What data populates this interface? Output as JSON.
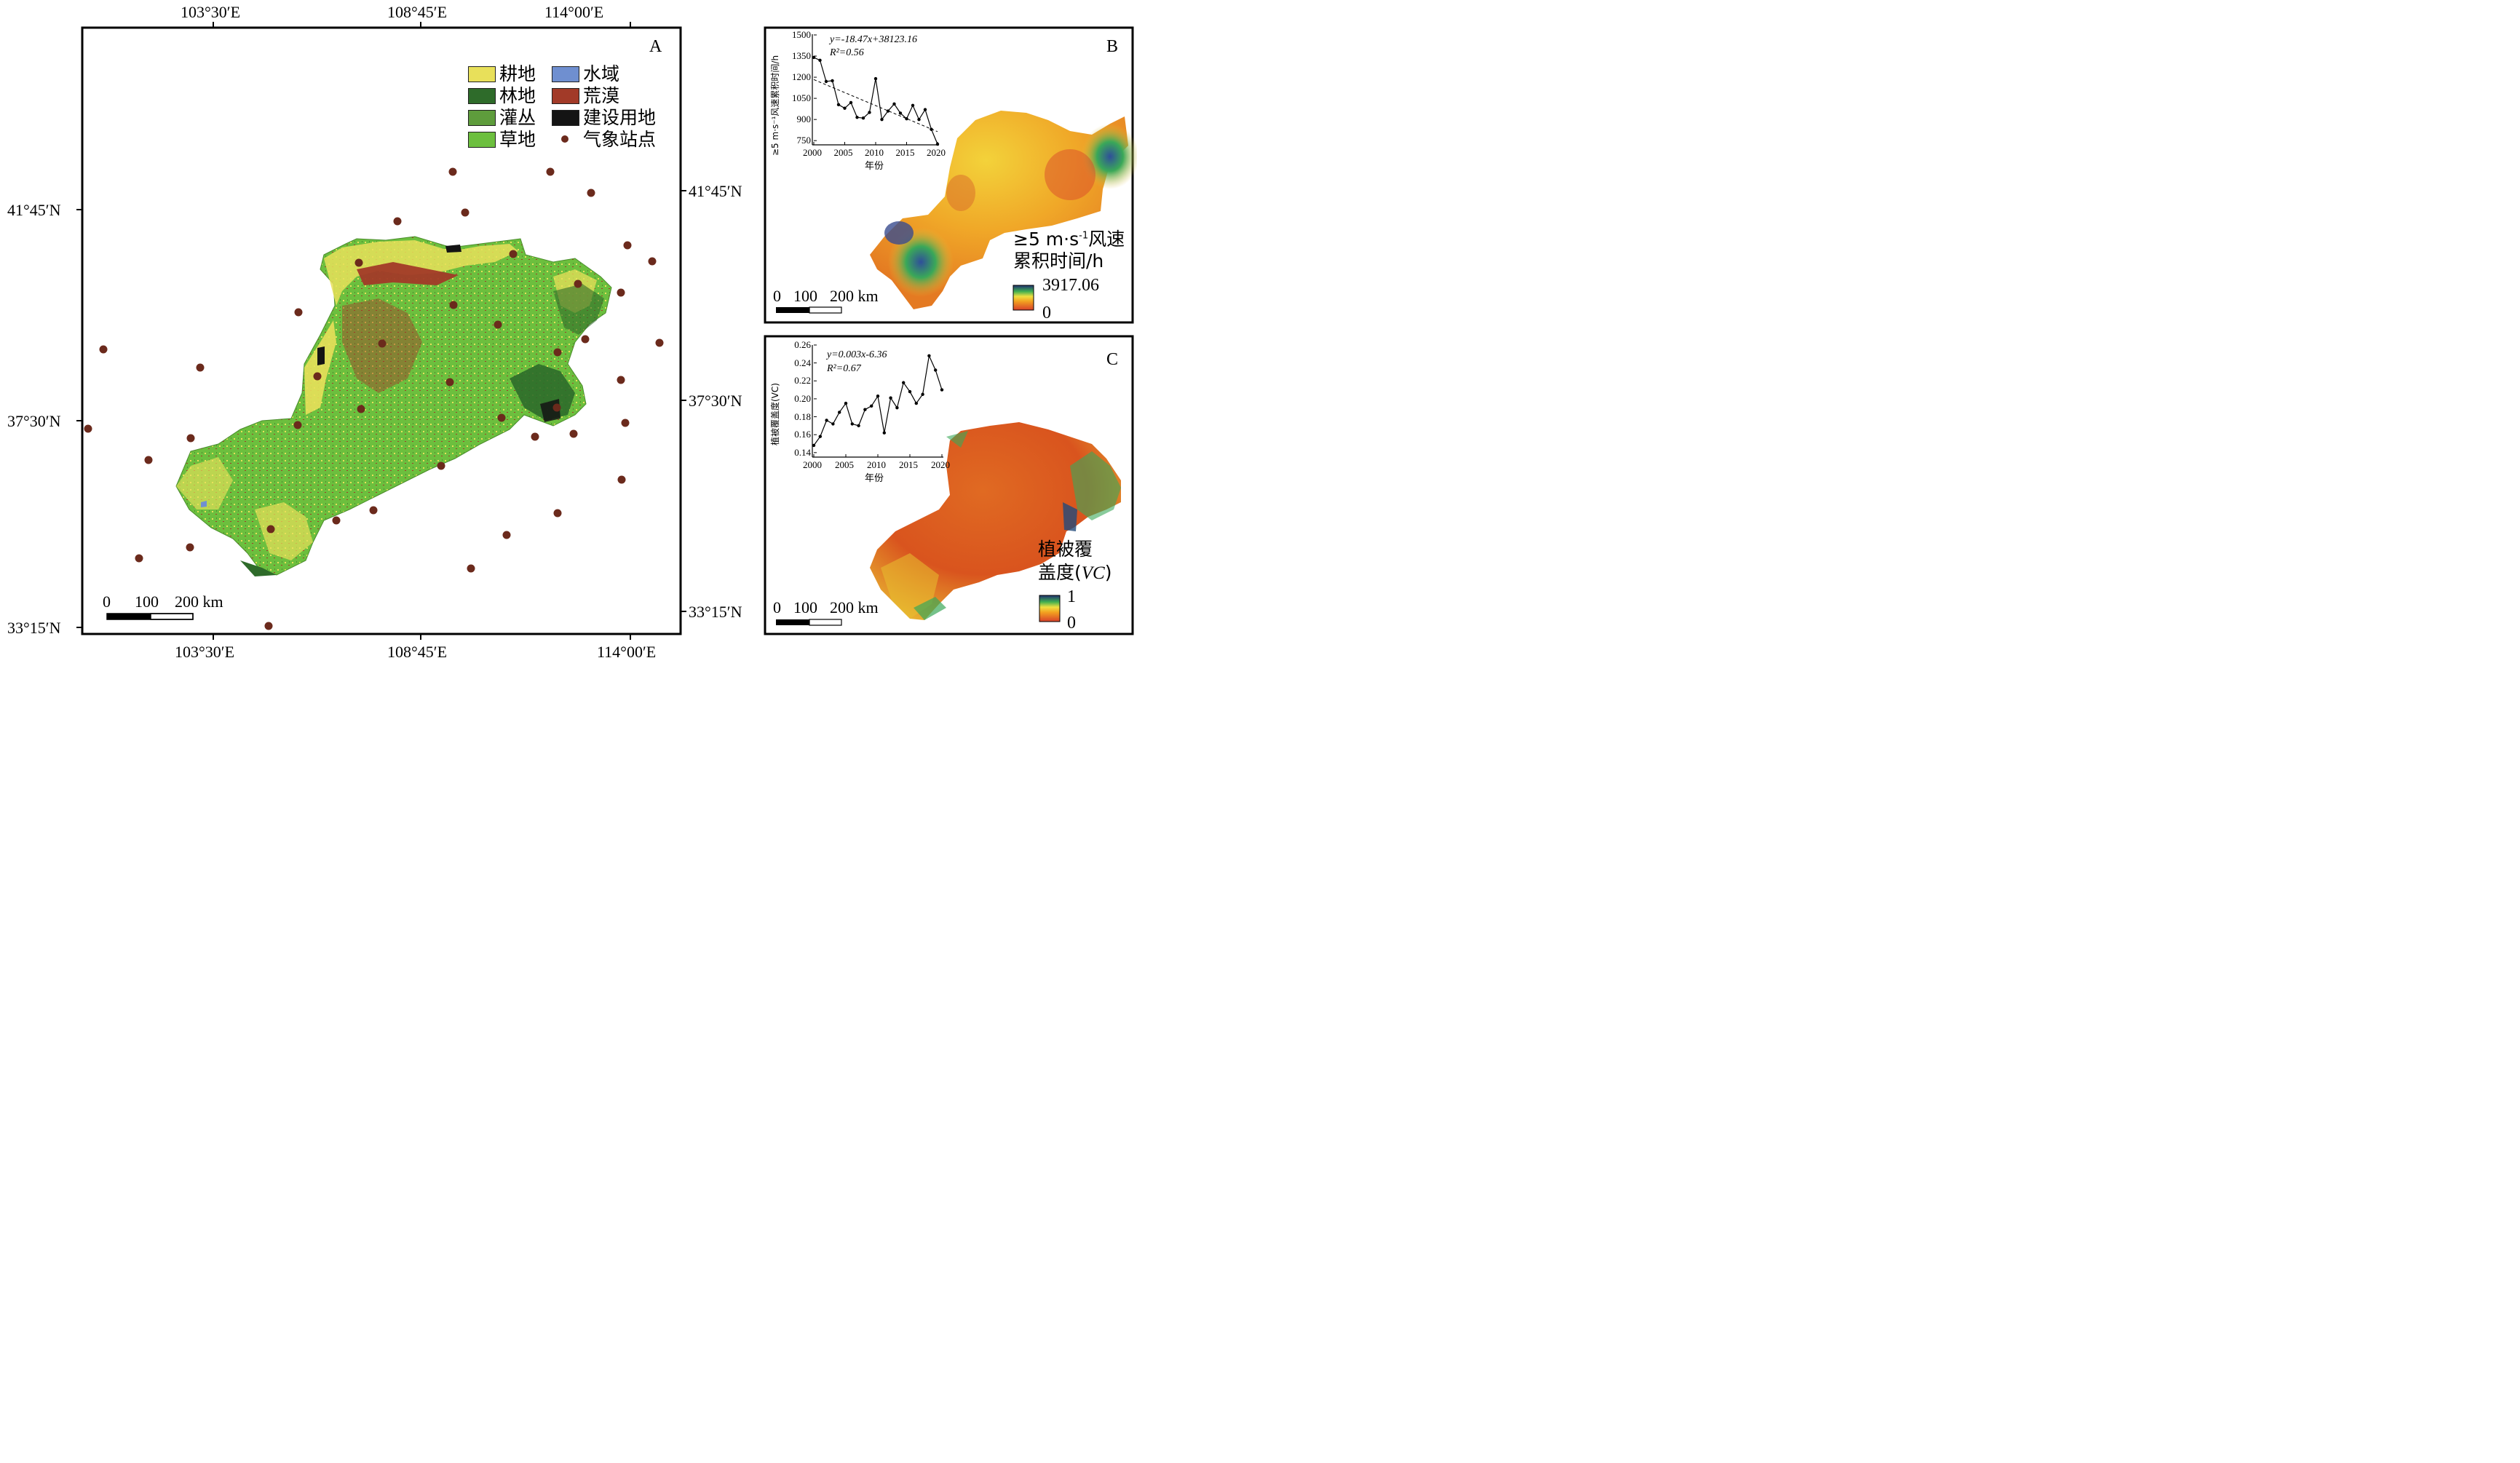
{
  "panel_a": {
    "letter": "A",
    "lon_labels": [
      "103°30′E",
      "108°45′E",
      "114°00′E"
    ],
    "lat_labels_left": [
      "41°45′N",
      "37°30′N",
      "33°15′N"
    ],
    "lat_labels_right": [
      "41°45′N",
      "37°30′N",
      "33°15′N"
    ],
    "legend": [
      {
        "label": "耕地",
        "color": "#e8e05a"
      },
      {
        "label": "水域",
        "color": "#6f8fd0"
      },
      {
        "label": "林地",
        "color": "#2e6b2a"
      },
      {
        "label": "荒漠",
        "color": "#a23a28"
      },
      {
        "label": "灌丛",
        "color": "#5e9c3c"
      },
      {
        "label": "建设用地",
        "color": "#141414"
      },
      {
        "label": "草地",
        "color": "#6cbf3e"
      },
      {
        "label": "气象站点",
        "color": "#6b2a1c"
      }
    ],
    "scale": {
      "zero": "0",
      "mid": "100",
      "end": "200 km"
    }
  },
  "panel_b": {
    "letter": "B",
    "legend_title_line1": "≥5 m·s",
    "legend_title_sup": "-1",
    "legend_title_line1_tail": "风速",
    "legend_title_line2": "累积时间/h",
    "legend_max": "3917.06",
    "legend_min": "0",
    "scale": {
      "zero": "0",
      "mid": "100",
      "end": "200 km"
    },
    "inset": {
      "equation": "y=-18.47x+38123.16",
      "r2": "R²=0.56",
      "ylabel": "≥5 m·s⁻¹风速累积时间/h",
      "xlabel": "年份"
    }
  },
  "panel_c": {
    "letter": "C",
    "legend_title_line1": "植被覆",
    "legend_title_line2_a": "盖度(",
    "legend_title_line2_b": "VC",
    "legend_title_line2_c": ")",
    "legend_max": "1",
    "legend_min": "0",
    "scale": {
      "zero": "0",
      "mid": "100",
      "end": "200 km"
    },
    "inset": {
      "equation": "y=0.003x-6.36",
      "r2": "R²=0.67",
      "ylabel": "植被覆盖度(VC)",
      "xlabel": "年份"
    }
  },
  "chart_data": [
    {
      "type": "line",
      "x": [
        2000,
        2001,
        2002,
        2003,
        2004,
        2005,
        2006,
        2007,
        2008,
        2009,
        2010,
        2011,
        2012,
        2013,
        2014,
        2015,
        2016,
        2017,
        2018,
        2019,
        2020
      ],
      "series": [
        {
          "values": [
            1340,
            1320,
            1170,
            1175,
            1005,
            980,
            1020,
            915,
            910,
            950,
            1190,
            900,
            960,
            1010,
            945,
            905,
            1000,
            900,
            970,
            830,
            725
          ]
        }
      ],
      "trend": {
        "slope": -18.47,
        "intercept": 38123.16
      },
      "xlabel": "年份",
      "ylabel": "≥5 m·s⁻¹风速累积时间/h",
      "xticks": [
        2000,
        2005,
        2010,
        2015,
        2020
      ],
      "yticks": [
        750,
        900,
        1050,
        1200,
        1350,
        1500
      ],
      "xlim": [
        2000,
        2020
      ],
      "ylim": [
        720,
        1500
      ]
    },
    {
      "type": "line",
      "x": [
        2000,
        2001,
        2002,
        2003,
        2004,
        2005,
        2006,
        2007,
        2008,
        2009,
        2010,
        2011,
        2012,
        2013,
        2014,
        2015,
        2016,
        2017,
        2018,
        2019,
        2020
      ],
      "series": [
        {
          "values": [
            0.148,
            0.158,
            0.176,
            0.172,
            0.185,
            0.195,
            0.172,
            0.17,
            0.188,
            0.192,
            0.203,
            0.162,
            0.201,
            0.19,
            0.218,
            0.208,
            0.195,
            0.205,
            0.248,
            0.232,
            0.21
          ]
        }
      ],
      "trend": {
        "slope": 0.003,
        "intercept": -6.36
      },
      "xlabel": "年份",
      "ylabel": "植被覆盖度(VC)",
      "xticks": [
        2000,
        2005,
        2010,
        2015,
        2020
      ],
      "yticks": [
        0.14,
        0.16,
        0.18,
        0.2,
        0.22,
        0.24,
        0.26
      ],
      "xlim": [
        2000,
        2020
      ],
      "ylim": [
        0.135,
        0.26
      ]
    }
  ]
}
